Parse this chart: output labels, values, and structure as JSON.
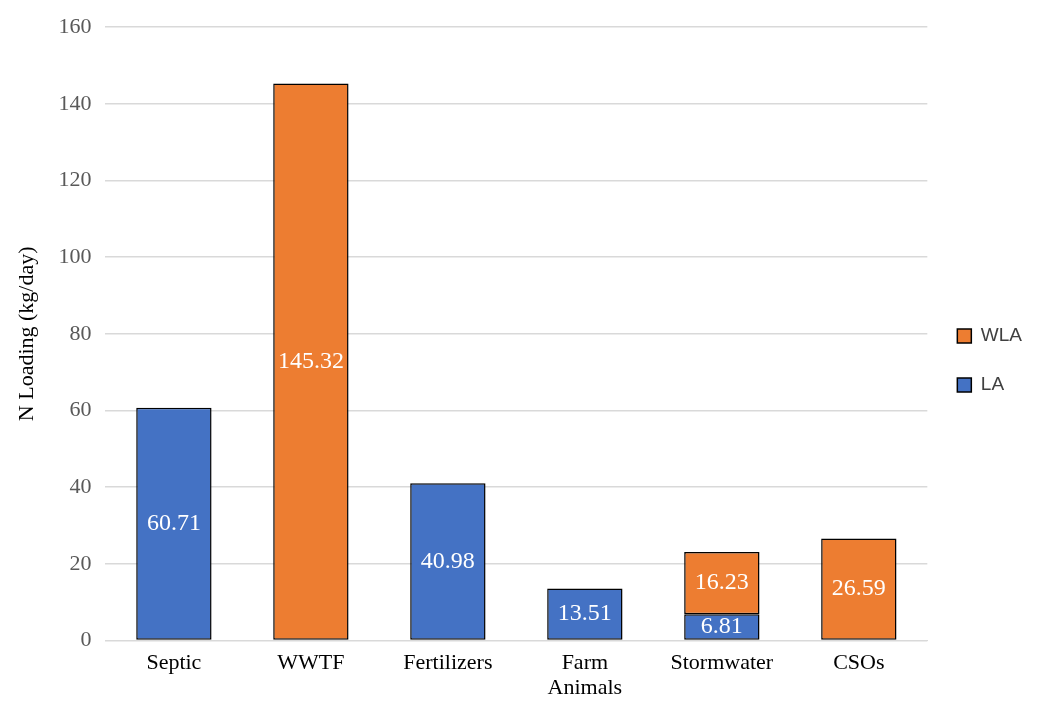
{
  "chart_data": {
    "type": "bar",
    "stacked": true,
    "ylabel": "N Loading (kg/day)",
    "categories": [
      "Septic",
      "WWTF",
      "Fertilizers",
      "Farm Animals",
      "Stormwater",
      "CSOs"
    ],
    "series": [
      {
        "name": "LA",
        "color": "#4472c4",
        "values": [
          60.71,
          null,
          40.98,
          13.51,
          6.81,
          null
        ]
      },
      {
        "name": "WLA",
        "color": "#ed7d31",
        "values": [
          null,
          145.32,
          null,
          null,
          16.23,
          26.59
        ]
      }
    ],
    "ylim": [
      0,
      160
    ],
    "yticks": [
      0,
      20,
      40,
      60,
      80,
      100,
      120,
      140,
      160
    ],
    "grid": "y",
    "legend": "right",
    "data_labels": true
  }
}
